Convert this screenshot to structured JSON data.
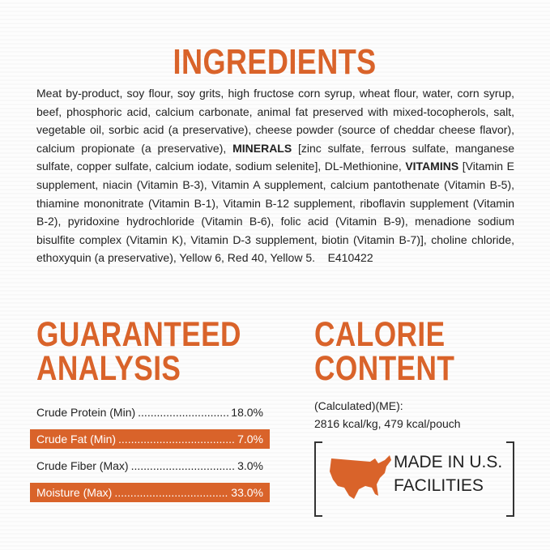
{
  "ingredients": {
    "title": "INGREDIENTS",
    "text_1": "Meat by-product, soy flour, soy grits, high fructose corn syrup, wheat flour, water, corn syrup, beef, phosphoric acid, calcium carbonate, animal fat preserved with mixed-tocopherols, salt, vegetable oil, sorbic acid (a preservative), cheese powder (source of cheddar cheese flavor), calcium propionate (a preservative), ",
    "minerals": "MINERALS",
    "text_2": " [zinc sulfate, ferrous sulfate, manganese sulfate, copper sulfate, calcium iodate, sodium selenite], DL-Methionine, ",
    "vitamins": "VITAMINS",
    "text_3": " [Vitamin E supplement, niacin (Vitamin B-3), Vitamin A supplement, calcium pantothenate (Vitamin B-5), thiamine mononitrate (Vitamin B-1), Vitamin B-12 supplement, riboflavin supplement (Vitamin B-2), pyridoxine hydrochloride (Vitamin B-6), folic acid (Vitamin B-9), menadione sodium bisulfite complex (Vitamin K), Vitamin D-3 supplement, biotin (Vitamin B-7)], choline chloride, ethoxyquin (a preservative), Yellow 6, Red 40, Yellow 5.",
    "code": "E410422"
  },
  "guaranteed_analysis": {
    "title_1": "GUARANTEED",
    "title_2": "ANALYSIS",
    "rows": [
      {
        "label": "Crude Protein (Min)",
        "value": "18.0%"
      },
      {
        "label": "Crude Fat (Min)",
        "value": "7.0%"
      },
      {
        "label": "Crude Fiber (Max)",
        "value": "3.0%"
      },
      {
        "label": "Moisture (Max)",
        "value": "33.0%"
      }
    ]
  },
  "calorie_content": {
    "title_1": "CALORIE",
    "title_2": "CONTENT",
    "line_1": "(Calculated)(ME):",
    "line_2": "2816 kcal/kg, 479 kcal/pouch"
  },
  "badge": {
    "line_1": "MADE IN U.S.",
    "line_2": "FACILITIES",
    "icon": "usa-map-icon"
  },
  "colors": {
    "accent": "#d9632a"
  }
}
